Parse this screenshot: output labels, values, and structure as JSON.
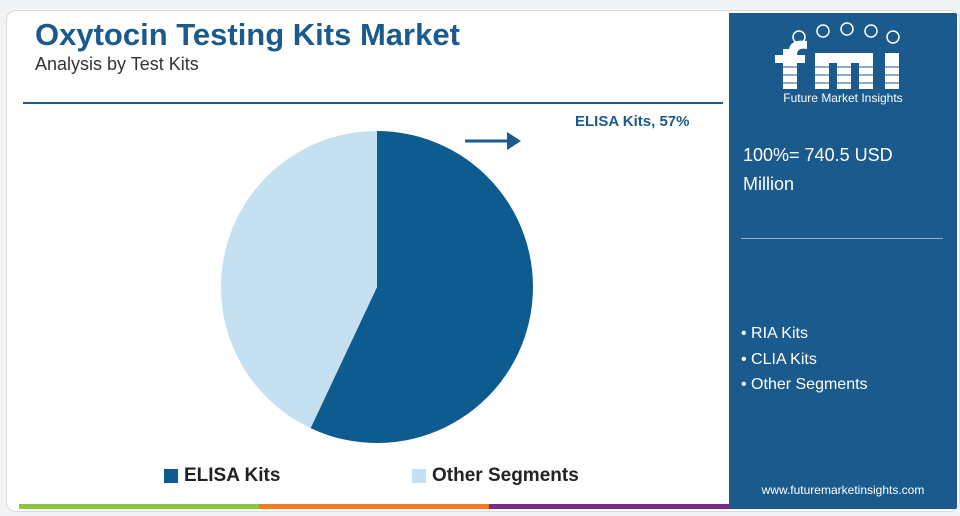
{
  "header": {
    "title": "Oxytocin Testing Kits Market",
    "subtitle": "Analysis by Test Kits"
  },
  "callout": {
    "label": "ELISA Kits, 57%"
  },
  "chart_data": {
    "type": "pie",
    "slices": [
      {
        "name": "ELISA Kits",
        "value": 57,
        "color": "#0e5b8f"
      },
      {
        "name": "Other Segments",
        "value": 43,
        "color": "#c5e0f0"
      }
    ],
    "legend_position": "bottom"
  },
  "legend": {
    "items": [
      {
        "label": "ELISA Kits",
        "color": "#0e5b8f"
      },
      {
        "label": "Other Segments",
        "color": "#c5e0f0"
      }
    ]
  },
  "panel": {
    "logo_letters": "fmi",
    "logo_text": "Future Market Insights",
    "total": "100%= 740.5 USD Million",
    "other_segments": [
      "RIA Kits",
      "CLIA Kits",
      "Other Segments"
    ],
    "url": "www.futuremarketinsights.com",
    "background": "#1b5a8c"
  },
  "bottom_bar": {
    "colors": [
      "#8cc63f",
      "#f47a20",
      "#7b2a8a"
    ]
  },
  "icons": {
    "arrow": "right-arrow-icon",
    "logo": "fmi-logo-icon"
  }
}
